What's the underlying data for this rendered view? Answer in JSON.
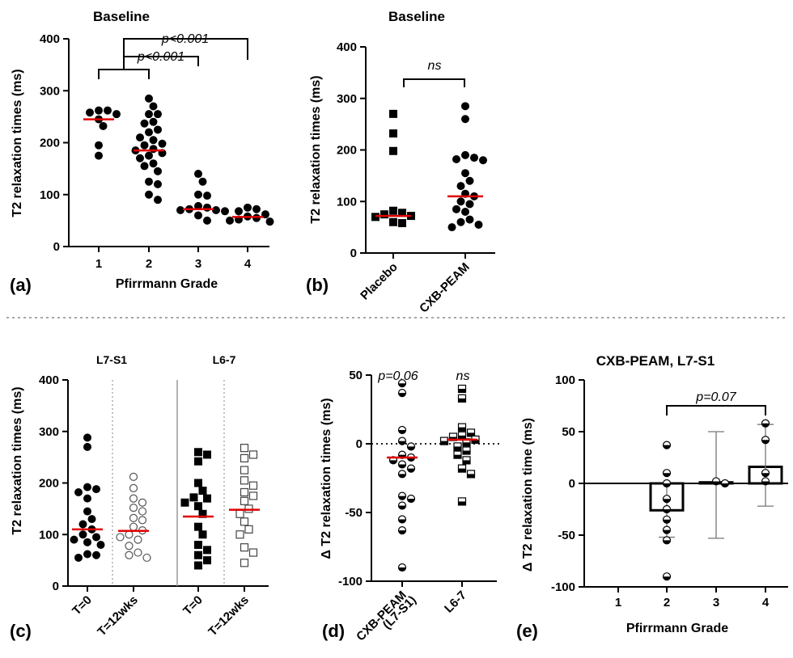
{
  "chart_data": [
    {
      "panel": "(a)",
      "type": "scatter",
      "title": "Baseline",
      "xlabel": "Pfirrmann Grade",
      "ylabel": "T2 relaxation times (ms)",
      "ylim": [
        0,
        400
      ],
      "yticks": [
        0,
        100,
        200,
        300,
        400
      ],
      "categories": [
        "1",
        "2",
        "3",
        "4"
      ],
      "series": [
        {
          "points": [
            255,
            262,
            262,
            258,
            245,
            232,
            195,
            175
          ],
          "median": 245
        },
        {
          "points": [
            285,
            270,
            255,
            255,
            240,
            237,
            225,
            220,
            210,
            205,
            198,
            195,
            188,
            185,
            180,
            175,
            170,
            160,
            155,
            145,
            125,
            120,
            100,
            90
          ],
          "median": 185
        },
        {
          "points": [
            140,
            125,
            100,
            98,
            78,
            75,
            72,
            70,
            70,
            68,
            60,
            50
          ],
          "median": 72
        },
        {
          "points": [
            75,
            72,
            68,
            62,
            58,
            55,
            52,
            50,
            48
          ],
          "median": 57
        }
      ],
      "annotations": [
        {
          "text": "p<0.001",
          "from": "1",
          "to": "2"
        },
        {
          "text": "p<0.001",
          "from": "1-2",
          "to": "3"
        },
        {
          "text": "p<0.001",
          "from": "1-2",
          "to": "4"
        }
      ]
    },
    {
      "panel": "(b)",
      "type": "scatter",
      "title": "Baseline",
      "ylabel": "T2 relaxation times (ms)",
      "ylim": [
        0,
        400
      ],
      "yticks": [
        0,
        100,
        200,
        300,
        400
      ],
      "categories": [
        "Placebo",
        "CXB-PEAM"
      ],
      "series": [
        {
          "marker": "square",
          "points": [
            270,
            232,
            198,
            82,
            78,
            75,
            72,
            70,
            60,
            58
          ],
          "median": 72
        },
        {
          "marker": "circle",
          "points": [
            285,
            260,
            190,
            185,
            182,
            180,
            155,
            140,
            130,
            115,
            110,
            100,
            95,
            85,
            80,
            65,
            60,
            55,
            50
          ],
          "median": 110
        }
      ],
      "annotations": [
        {
          "text": "ns",
          "from": "Placebo",
          "to": "CXB-PEAM"
        }
      ]
    },
    {
      "panel": "(c)",
      "type": "scatter",
      "ylabel": "T2 relaxation times (ms)",
      "ylim": [
        0,
        400
      ],
      "yticks": [
        0,
        100,
        200,
        300,
        400
      ],
      "groups": [
        "L7-S1",
        "L6-7"
      ],
      "categories": [
        "T=0",
        "T=12wks",
        "T=0",
        "T=12wks"
      ],
      "series": [
        {
          "marker": "filled-circle",
          "points": [
            288,
            270,
            192,
            188,
            182,
            170,
            145,
            130,
            120,
            110,
            100,
            95,
            90,
            85,
            80,
            62,
            60,
            55
          ],
          "median": 110
        },
        {
          "marker": "open-circle",
          "points": [
            212,
            190,
            170,
            162,
            152,
            145,
            132,
            128,
            115,
            108,
            100,
            95,
            90,
            78,
            65,
            60,
            55
          ],
          "median": 107
        },
        {
          "marker": "filled-square",
          "points": [
            260,
            255,
            242,
            200,
            185,
            172,
            170,
            162,
            155,
            140,
            115,
            100,
            80,
            70,
            60,
            50,
            40
          ],
          "median": 135
        },
        {
          "marker": "open-square",
          "points": [
            268,
            255,
            248,
            225,
            205,
            195,
            182,
            175,
            165,
            150,
            140,
            125,
            110,
            100,
            75,
            65,
            45
          ],
          "median": 148
        }
      ]
    },
    {
      "panel": "(d)",
      "type": "scatter",
      "ylabel": "Δ T2 relaxation times (ms)",
      "ylim": [
        -100,
        50
      ],
      "yticks": [
        -100,
        -50,
        0,
        50
      ],
      "categories": [
        "CXB-PEAM\n(L7-S1)",
        "L6-7"
      ],
      "series": [
        {
          "marker": "half-circle",
          "points": [
            44,
            37,
            10,
            2,
            -2,
            -8,
            -10,
            -12,
            -15,
            -18,
            -22,
            -38,
            -40,
            -45,
            -55,
            -63,
            -90
          ],
          "median": -10
        },
        {
          "marker": "half-square",
          "points": [
            40,
            33,
            12,
            8,
            6,
            5,
            3,
            2,
            1,
            -2,
            -5,
            -8,
            -12,
            -18,
            -22,
            -42
          ],
          "median": 3
        }
      ],
      "annotations": [
        {
          "text": "p=0.06",
          "at": "CXB-PEAM\n(L7-S1)"
        },
        {
          "text": "ns",
          "at": "L6-7"
        }
      ]
    },
    {
      "panel": "(e)",
      "type": "bar",
      "title": "CXB-PEAM, L7-S1",
      "xlabel": "Pfirrmann Grade",
      "ylabel": "Δ T2 relaxation time (ms)",
      "ylim": [
        -100,
        100
      ],
      "yticks": [
        -100,
        -50,
        0,
        50,
        100
      ],
      "categories": [
        "1",
        "2",
        "3",
        "4"
      ],
      "values": [
        null,
        -26,
        1,
        16
      ],
      "error": [
        null,
        [
          -52,
          0
        ],
        [
          -53,
          50
        ],
        [
          -22,
          57
        ]
      ],
      "points": [
        [],
        [
          37,
          10,
          0,
          -15,
          -25,
          -35,
          -45,
          -55,
          -90
        ],
        [
          2,
          0
        ],
        [
          58,
          42,
          10,
          2
        ]
      ],
      "annotations": [
        {
          "text": "p=0.07",
          "from": "2",
          "to": "4"
        }
      ]
    }
  ],
  "panel_labels": [
    "(a)",
    "(b)",
    "(c)",
    "(d)",
    "(e)"
  ]
}
